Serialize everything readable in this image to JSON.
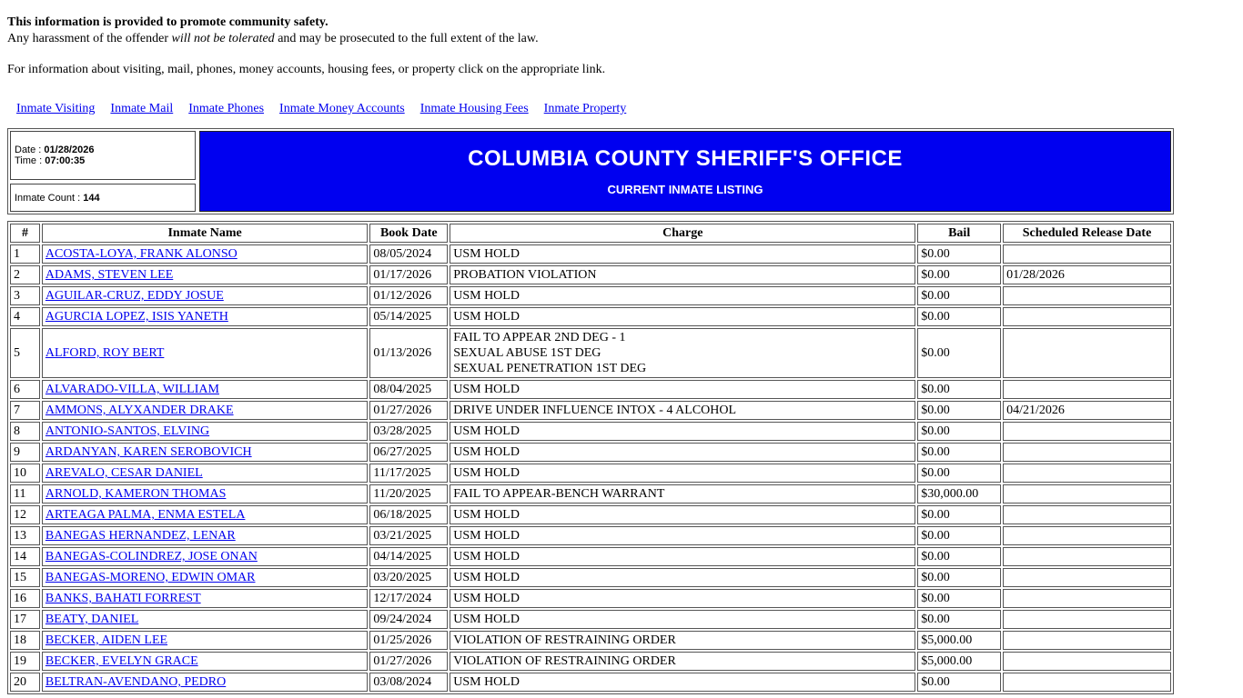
{
  "notice": {
    "line1": "This information is provided to promote community safety.",
    "line2_pre": "Any harassment of the offender ",
    "line2_italic": "will not be tolerated",
    "line2_post": " and may be prosecuted to the full extent of the law.",
    "line3": "For information about visiting, mail, phones, money accounts, housing fees, or property click on the appropriate link."
  },
  "nav": {
    "links": [
      "Inmate Visiting",
      "Inmate Mail",
      "Inmate Phones",
      "Inmate Money Accounts",
      "Inmate Housing Fees",
      "Inmate Property"
    ]
  },
  "header": {
    "date_label": "Date : ",
    "date_value": "01/28/2026",
    "time_label": "Time : ",
    "time_value": "07:00:35",
    "count_label": "Inmate Count : ",
    "count_value": "144",
    "title": "COLUMBIA COUNTY SHERIFF'S OFFICE",
    "subtitle": "CURRENT INMATE LISTING",
    "banner_color": "#0000F0"
  },
  "table": {
    "columns": [
      "#",
      "Inmate Name",
      "Book Date",
      "Charge",
      "Bail",
      "Scheduled Release Date"
    ],
    "rows": [
      {
        "num": "1",
        "name": "ACOSTA-LOYA, FRANK ALONSO",
        "book_date": "08/05/2024",
        "charges": [
          "USM HOLD"
        ],
        "bail": "$0.00",
        "release_date": ""
      },
      {
        "num": "2",
        "name": "ADAMS, STEVEN LEE",
        "book_date": "01/17/2026",
        "charges": [
          "PROBATION VIOLATION"
        ],
        "bail": "$0.00",
        "release_date": "01/28/2026"
      },
      {
        "num": "3",
        "name": "AGUILAR-CRUZ, EDDY JOSUE",
        "book_date": "01/12/2026",
        "charges": [
          "USM HOLD"
        ],
        "bail": "$0.00",
        "release_date": ""
      },
      {
        "num": "4",
        "name": "AGURCIA LOPEZ, ISIS YANETH",
        "book_date": "05/14/2025",
        "charges": [
          "USM HOLD"
        ],
        "bail": "$0.00",
        "release_date": ""
      },
      {
        "num": "5",
        "name": "ALFORD, ROY BERT",
        "book_date": "01/13/2026",
        "charges": [
          "FAIL TO APPEAR 2ND DEG - 1",
          "SEXUAL ABUSE 1ST DEG",
          "SEXUAL PENETRATION 1ST DEG"
        ],
        "bail": "$0.00",
        "release_date": ""
      },
      {
        "num": "6",
        "name": "ALVARADO-VILLA, WILLIAM",
        "book_date": "08/04/2025",
        "charges": [
          "USM HOLD"
        ],
        "bail": "$0.00",
        "release_date": ""
      },
      {
        "num": "7",
        "name": "AMMONS, ALYXANDER DRAKE",
        "book_date": "01/27/2026",
        "charges": [
          "DRIVE UNDER INFLUENCE INTOX - 4 ALCOHOL"
        ],
        "bail": "$0.00",
        "release_date": "04/21/2026"
      },
      {
        "num": "8",
        "name": "ANTONIO-SANTOS, ELVING",
        "book_date": "03/28/2025",
        "charges": [
          "USM HOLD"
        ],
        "bail": "$0.00",
        "release_date": ""
      },
      {
        "num": "9",
        "name": "ARDANYAN, KAREN SEROBOVICH",
        "book_date": "06/27/2025",
        "charges": [
          "USM HOLD"
        ],
        "bail": "$0.00",
        "release_date": ""
      },
      {
        "num": "10",
        "name": "AREVALO, CESAR DANIEL",
        "book_date": "11/17/2025",
        "charges": [
          "USM HOLD"
        ],
        "bail": "$0.00",
        "release_date": ""
      },
      {
        "num": "11",
        "name": "ARNOLD, KAMERON THOMAS",
        "book_date": "11/20/2025",
        "charges": [
          "FAIL TO APPEAR-BENCH WARRANT"
        ],
        "bail": "$30,000.00",
        "release_date": ""
      },
      {
        "num": "12",
        "name": "ARTEAGA PALMA, ENMA ESTELA",
        "book_date": "06/18/2025",
        "charges": [
          "USM HOLD"
        ],
        "bail": "$0.00",
        "release_date": ""
      },
      {
        "num": "13",
        "name": "BANEGAS HERNANDEZ, LENAR",
        "book_date": "03/21/2025",
        "charges": [
          "USM HOLD"
        ],
        "bail": "$0.00",
        "release_date": ""
      },
      {
        "num": "14",
        "name": "BANEGAS-COLINDREZ, JOSE ONAN",
        "book_date": "04/14/2025",
        "charges": [
          "USM HOLD"
        ],
        "bail": "$0.00",
        "release_date": ""
      },
      {
        "num": "15",
        "name": "BANEGAS-MORENO, EDWIN OMAR",
        "book_date": "03/20/2025",
        "charges": [
          "USM HOLD"
        ],
        "bail": "$0.00",
        "release_date": ""
      },
      {
        "num": "16",
        "name": "BANKS, BAHATI FORREST",
        "book_date": "12/17/2024",
        "charges": [
          "USM HOLD"
        ],
        "bail": "$0.00",
        "release_date": ""
      },
      {
        "num": "17",
        "name": "BEATY, DANIEL",
        "book_date": "09/24/2024",
        "charges": [
          "USM HOLD"
        ],
        "bail": "$0.00",
        "release_date": ""
      },
      {
        "num": "18",
        "name": "BECKER, AIDEN LEE",
        "book_date": "01/25/2026",
        "charges": [
          "VIOLATION OF RESTRAINING ORDER"
        ],
        "bail": "$5,000.00",
        "release_date": ""
      },
      {
        "num": "19",
        "name": "BECKER, EVELYN GRACE",
        "book_date": "01/27/2026",
        "charges": [
          "VIOLATION OF RESTRAINING ORDER"
        ],
        "bail": "$5,000.00",
        "release_date": ""
      },
      {
        "num": "20",
        "name": "BELTRAN-AVENDANO, PEDRO",
        "book_date": "03/08/2024",
        "charges": [
          "USM HOLD"
        ],
        "bail": "$0.00",
        "release_date": ""
      }
    ]
  }
}
